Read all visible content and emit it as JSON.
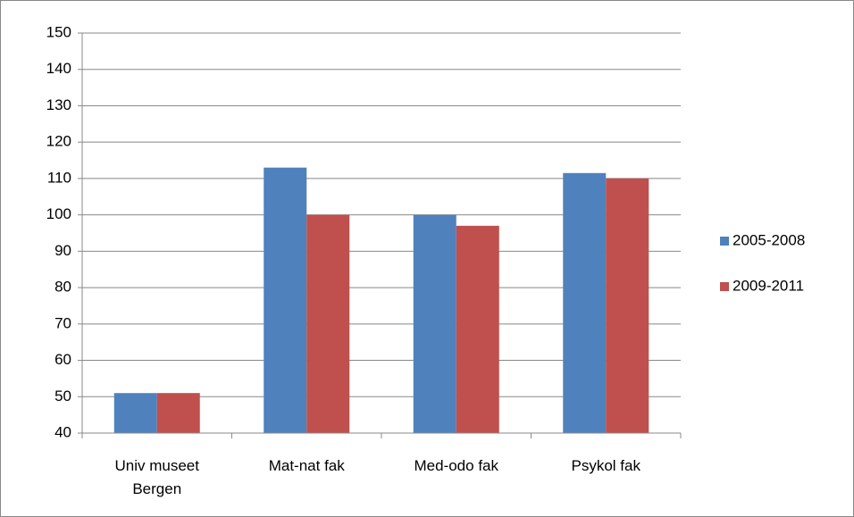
{
  "chart_data": {
    "type": "bar",
    "categories": [
      "Univ museet Bergen",
      "Mat-nat fak",
      "Med-odo fak",
      "Psykol fak"
    ],
    "series": [
      {
        "name": "2005-2008",
        "color": "#4f81bd",
        "values": [
          51,
          113,
          100,
          111.5
        ]
      },
      {
        "name": "2009-2011",
        "color": "#c0504d",
        "values": [
          51,
          100,
          97,
          110
        ]
      }
    ],
    "ylim": [
      40,
      150
    ],
    "yticks": [
      40,
      50,
      60,
      70,
      80,
      90,
      100,
      110,
      120,
      130,
      140,
      150
    ],
    "grid": true,
    "legend": "right"
  }
}
